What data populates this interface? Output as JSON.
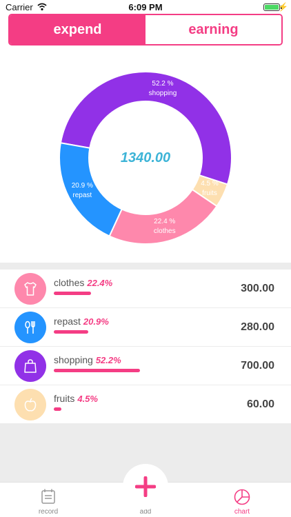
{
  "status": {
    "carrier": "Carrier",
    "time": "6:09 PM",
    "charging_glyph": "⚡"
  },
  "segment": {
    "expend": "expend",
    "earning": "earning"
  },
  "chart_data": {
    "type": "pie",
    "total": "1340.00",
    "slices": [
      {
        "name": "shopping",
        "percent_label": "52.2 %",
        "fraction": 0.522,
        "color": "#9131e7"
      },
      {
        "name": "fruits",
        "percent_label": "4.5 %",
        "fraction": 0.045,
        "color": "#fddfb0"
      },
      {
        "name": "clothes",
        "percent_label": "22.4 %",
        "fraction": 0.224,
        "color": "#fe88ac"
      },
      {
        "name": "repast",
        "percent_label": "20.9 %",
        "fraction": 0.209,
        "color": "#2494ff"
      }
    ]
  },
  "list": {
    "items": [
      {
        "name": "clothes",
        "percent": "22.4%",
        "fraction": 0.224,
        "amount": "300.00",
        "icon": "shirt-icon",
        "color": "#fe88ac"
      },
      {
        "name": "repast",
        "percent": "20.9%",
        "fraction": 0.209,
        "amount": "280.00",
        "icon": "utensils-icon",
        "color": "#2494ff"
      },
      {
        "name": "shopping",
        "percent": "52.2%",
        "fraction": 0.522,
        "amount": "700.00",
        "icon": "shopping-bag-icon",
        "color": "#9131e7"
      },
      {
        "name": "fruits",
        "percent": "4.5%",
        "fraction": 0.045,
        "amount": "60.00",
        "icon": "apple-icon",
        "color": "#fddfb0"
      }
    ]
  },
  "tabs": {
    "record": "record",
    "add": "add",
    "chart": "chart"
  },
  "colors": {
    "accent": "#f43d84",
    "total": "#3db4d7"
  }
}
